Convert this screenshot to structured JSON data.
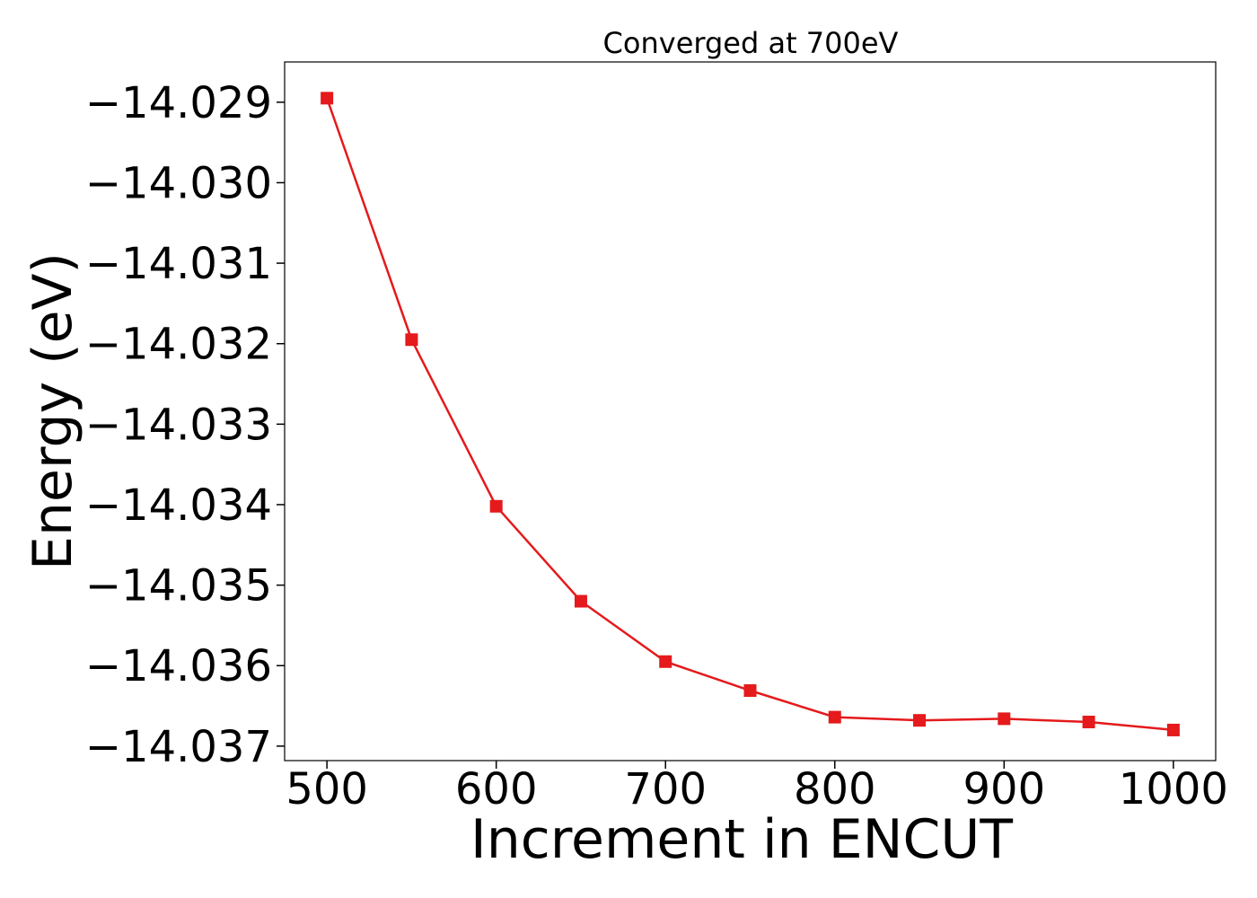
{
  "chart_data": {
    "type": "line",
    "title": "Converged at 700eV",
    "xlabel": "Increment in ENCUT",
    "ylabel": "Energy (eV)",
    "xlim": [
      475,
      1025
    ],
    "ylim": [
      -14.03718,
      -14.0285
    ],
    "xticks": [
      500,
      600,
      700,
      800,
      900,
      1000
    ],
    "xtick_labels": [
      "500",
      "600",
      "700",
      "800",
      "900",
      "1000"
    ],
    "yticks": [
      -14.029,
      -14.03,
      -14.031,
      -14.032,
      -14.033,
      -14.034,
      -14.035,
      -14.036,
      -14.037
    ],
    "ytick_labels": [
      "−14.029",
      "−14.030",
      "−14.031",
      "−14.032",
      "−14.033",
      "−14.034",
      "−14.035",
      "−14.036",
      "−14.037"
    ],
    "grid": false,
    "series": [
      {
        "color": "#e41a1c",
        "marker": "square",
        "x": [
          500,
          550,
          600,
          650,
          700,
          750,
          800,
          850,
          900,
          950,
          1000
        ],
        "y": [
          -14.02895,
          -14.03195,
          -14.03402,
          -14.0352,
          -14.03595,
          -14.03631,
          -14.03664,
          -14.03668,
          -14.03666,
          -14.0367,
          -14.0368
        ]
      }
    ]
  }
}
